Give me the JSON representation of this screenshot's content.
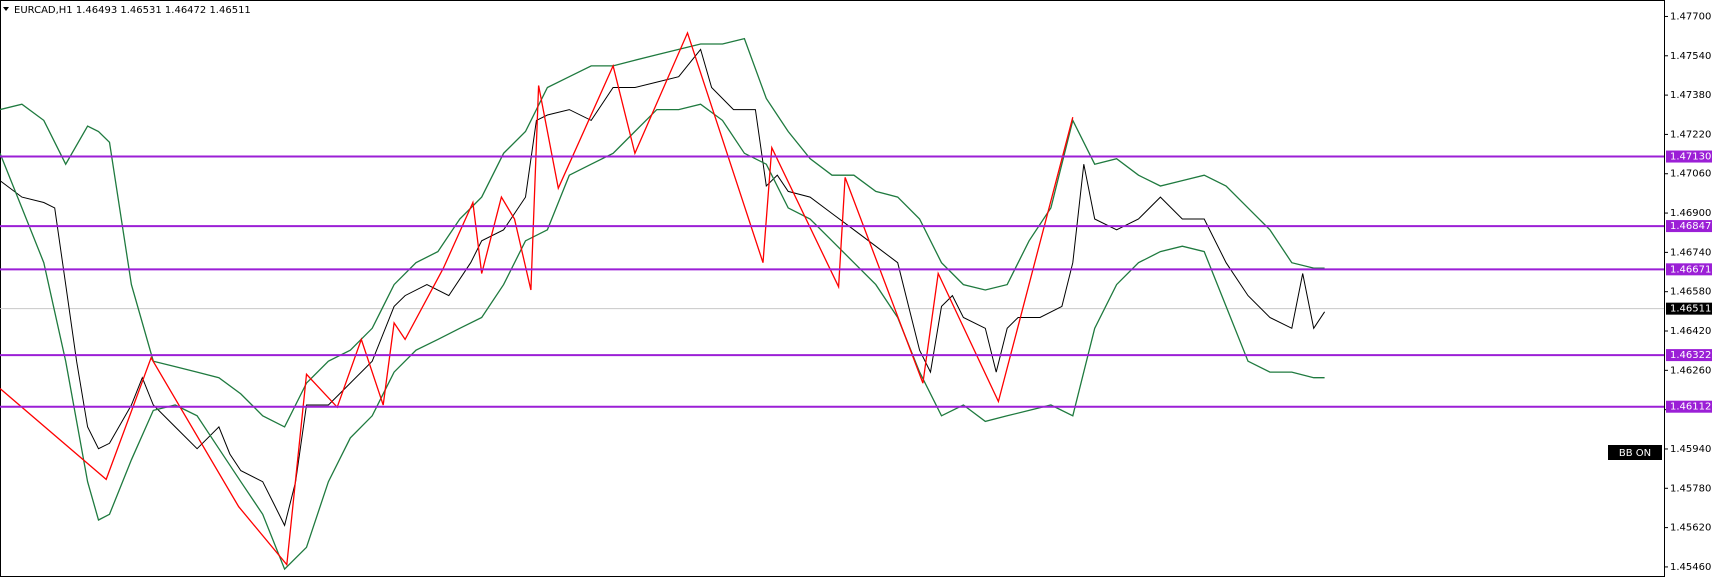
{
  "chart_data": {
    "type": "line",
    "title": "EURCAD,H1  1.46493 1.46531 1.46472 1.46511",
    "badge": "BB ON",
    "xlim": [
      0,
      152
    ],
    "ylim": [
      1.45419,
      1.47767
    ],
    "yticks": [
      {
        "value": 1.477,
        "label": "1.47700"
      },
      {
        "value": 1.4754,
        "label": "1.47540"
      },
      {
        "value": 1.4738,
        "label": "1.47380"
      },
      {
        "value": 1.4722,
        "label": "1.47220"
      },
      {
        "value": 1.4706,
        "label": "1.47060"
      },
      {
        "value": 1.469,
        "label": "1.46900"
      },
      {
        "value": 1.4674,
        "label": "1.46740"
      },
      {
        "value": 1.4658,
        "label": "1.46580"
      },
      {
        "value": 1.4642,
        "label": "1.46420"
      },
      {
        "value": 1.4626,
        "label": "1.46260"
      },
      {
        "value": 1.461,
        "label": "1.46100"
      },
      {
        "value": 1.4594,
        "label": "1.45940"
      },
      {
        "value": 1.4578,
        "label": "1.45780"
      },
      {
        "value": 1.4562,
        "label": "1.45620"
      },
      {
        "value": 1.4546,
        "label": "1.45460"
      }
    ],
    "levels": [
      {
        "value": 1.4713,
        "label": "1.47130"
      },
      {
        "value": 1.46847,
        "label": "1.46847"
      },
      {
        "value": 1.46671,
        "label": "1.46671"
      },
      {
        "value": 1.46322,
        "label": "1.46322"
      },
      {
        "value": 1.46112,
        "label": "1.46112"
      }
    ],
    "level_color": "#9b1fd6",
    "current": {
      "value": 1.46511,
      "label": "1.46511"
    },
    "series": [
      {
        "color": "#000000",
        "x": [
          0,
          2,
          4,
          5,
          6,
          7,
          8,
          9,
          10,
          12,
          13,
          14,
          16,
          18,
          20,
          21,
          22,
          24,
          25,
          26,
          27,
          28,
          30,
          32,
          34,
          36,
          37,
          39,
          41,
          43,
          44,
          46,
          48,
          49,
          50,
          52,
          54,
          56,
          58,
          60,
          62,
          64,
          65,
          67,
          69,
          70,
          71,
          72,
          74,
          76,
          78,
          80,
          82,
          83,
          84,
          85,
          86,
          87,
          88,
          90,
          91,
          92,
          93,
          95,
          97,
          98,
          99,
          100,
          102,
          104,
          106,
          108,
          110,
          112,
          114,
          116,
          118,
          119,
          120,
          121
        ],
        "values": [
          1.47032,
          1.46965,
          1.46943,
          1.46921,
          1.46609,
          1.46297,
          1.4603,
          1.45941,
          1.45963,
          1.46119,
          1.4623,
          1.46119,
          1.4603,
          1.45941,
          1.4603,
          1.45919,
          1.45852,
          1.45807,
          1.45718,
          1.45629,
          1.45807,
          1.46119,
          1.46119,
          1.46208,
          1.46297,
          1.4652,
          1.46564,
          1.46609,
          1.46564,
          1.46698,
          1.46787,
          1.46832,
          1.46965,
          1.47277,
          1.47299,
          1.47321,
          1.47277,
          1.47411,
          1.47411,
          1.47433,
          1.47455,
          1.47566,
          1.47411,
          1.47321,
          1.47321,
          1.4701,
          1.47054,
          1.46988,
          1.46965,
          1.46898,
          1.46832,
          1.46765,
          1.46698,
          1.4652,
          1.46342,
          1.46253,
          1.4652,
          1.46564,
          1.46475,
          1.46431,
          1.46253,
          1.46431,
          1.46475,
          1.46475,
          1.4652,
          1.46698,
          1.47099,
          1.46876,
          1.46832,
          1.46876,
          1.46965,
          1.46876,
          1.46876,
          1.46698,
          1.46564,
          1.46475,
          1.46431,
          1.46654,
          1.46431,
          1.46498
        ]
      },
      {
        "color": "#1f7a3f",
        "x": [
          0,
          2,
          4,
          6,
          8,
          9,
          10,
          12,
          14,
          16,
          18,
          20,
          22,
          24,
          26,
          28,
          30,
          32,
          34,
          36,
          38,
          40,
          42,
          44,
          46,
          48,
          50,
          52,
          54,
          56,
          58,
          60,
          62,
          64,
          66,
          68,
          70,
          72,
          74,
          76,
          78,
          80,
          82,
          84,
          86,
          88,
          90,
          92,
          94,
          96,
          98,
          100,
          102,
          104,
          106,
          108,
          110,
          112,
          114,
          116,
          118,
          120,
          121
        ],
        "values": [
          1.47321,
          1.47343,
          1.47277,
          1.47099,
          1.47254,
          1.47232,
          1.47188,
          1.46609,
          1.46297,
          1.46275,
          1.46253,
          1.4623,
          1.46164,
          1.46075,
          1.4603,
          1.46208,
          1.46297,
          1.46342,
          1.46431,
          1.46609,
          1.46698,
          1.46743,
          1.46876,
          1.46965,
          1.47143,
          1.47232,
          1.47411,
          1.47455,
          1.47499,
          1.47499,
          1.47522,
          1.47544,
          1.47566,
          1.47588,
          1.47588,
          1.4761,
          1.47366,
          1.47232,
          1.47121,
          1.47054,
          1.47054,
          1.46988,
          1.46965,
          1.46876,
          1.46698,
          1.46609,
          1.46587,
          1.46609,
          1.46787,
          1.46921,
          1.47277,
          1.47099,
          1.47121,
          1.47054,
          1.4701,
          1.47032,
          1.47054,
          1.4701,
          1.46921,
          1.46832,
          1.46698,
          1.46676,
          1.46676
        ]
      },
      {
        "color": "#1f7a3f",
        "x": [
          0,
          2,
          4,
          6,
          8,
          9,
          10,
          12,
          14,
          16,
          18,
          20,
          22,
          24,
          26,
          28,
          30,
          32,
          34,
          36,
          38,
          40,
          42,
          44,
          46,
          48,
          50,
          52,
          54,
          56,
          58,
          60,
          62,
          64,
          66,
          68,
          70,
          72,
          74,
          76,
          78,
          80,
          82,
          84,
          86,
          88,
          90,
          92,
          94,
          96,
          98,
          100,
          102,
          104,
          106,
          108,
          110,
          112,
          114,
          116,
          118,
          120,
          121
        ],
        "values": [
          1.47143,
          1.46921,
          1.46698,
          1.46297,
          1.45807,
          1.45651,
          1.45674,
          1.45896,
          1.46097,
          1.46119,
          1.46075,
          1.45941,
          1.45807,
          1.45674,
          1.45451,
          1.4554,
          1.45807,
          1.45985,
          1.46075,
          1.46253,
          1.46342,
          1.46386,
          1.46431,
          1.46475,
          1.46609,
          1.46787,
          1.46832,
          1.47054,
          1.47099,
          1.47143,
          1.47232,
          1.47321,
          1.47321,
          1.47343,
          1.47277,
          1.47143,
          1.47099,
          1.46921,
          1.46876,
          1.46787,
          1.46698,
          1.46609,
          1.46475,
          1.46253,
          1.46075,
          1.46119,
          1.46052,
          1.46075,
          1.46097,
          1.46119,
          1.46075,
          1.46431,
          1.46609,
          1.46698,
          1.46743,
          1.46765,
          1.46743,
          1.4652,
          1.46297,
          1.46253,
          1.46253,
          1.4623,
          1.4623
        ]
      },
      {
        "color": "#ff0000",
        "x": [
          0,
          9.7,
          13.8,
          21.8,
          26.2,
          28,
          30.8,
          33,
          35,
          36,
          37,
          40.5,
          43.2,
          44,
          45.8,
          47,
          48.5,
          49.2,
          51,
          56,
          58,
          62.8,
          69.7,
          70.5,
          76.6,
          77.2,
          84.3,
          85.7,
          91.2,
          98
        ],
        "values": [
          1.46186,
          1.45816,
          1.46311,
          1.45705,
          1.45469,
          1.46244,
          1.4611,
          1.46386,
          1.46119,
          1.46453,
          1.46386,
          1.46676,
          1.46943,
          1.46654,
          1.46965,
          1.46876,
          1.46587,
          1.47419,
          1.47001,
          1.47499,
          1.47143,
          1.47633,
          1.46698,
          1.47166,
          1.466,
          1.47045,
          1.46208,
          1.46654,
          1.46133,
          1.4729
        ]
      }
    ]
  }
}
